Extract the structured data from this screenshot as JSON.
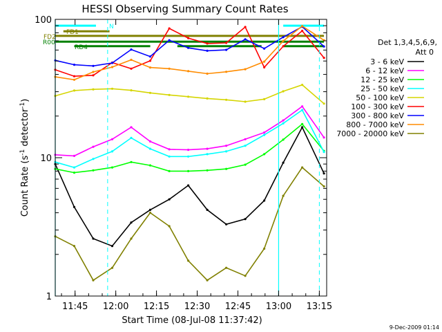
{
  "chart_data": {
    "type": "line",
    "title": "HESSI Observing Summary Count Rates",
    "xlabel": "Start Time (08-Jul-08 11:37:42)",
    "ylabel_main": "Count Rate (s",
    "ylabel_sup1": "-1",
    "ylabel_mid": " detector",
    "ylabel_sup2": "-1",
    "ylabel_end": ")",
    "yscale": "log",
    "ylim": [
      1,
      100
    ],
    "xlim_minutes": [
      0,
      100
    ],
    "x_ticks": [
      {
        "label": "11:45",
        "minute": 7.3
      },
      {
        "label": "12:00",
        "minute": 22.3
      },
      {
        "label": "12:15",
        "minute": 37.3
      },
      {
        "label": "12:30",
        "minute": 52.3
      },
      {
        "label": "12:45",
        "minute": 67.3
      },
      {
        "label": "13:00",
        "minute": 82.3
      },
      {
        "label": "13:15",
        "minute": 97.3
      }
    ],
    "y_ticks": [
      {
        "label": "1",
        "value": 1
      },
      {
        "label": "10",
        "value": 10
      },
      {
        "label": "100",
        "value": 100
      }
    ],
    "legend_title_1": "Det 1,3,4,5,6,9,",
    "legend_title_2": "Att 0",
    "legend_position": "right",
    "series": [
      {
        "name": "3 - 6 keV",
        "color": "#000000",
        "values": [
          9.0,
          4.4,
          2.6,
          2.3,
          3.4,
          4.2,
          5.0,
          6.3,
          4.2,
          3.3,
          3.6,
          4.9,
          9.2,
          16.6,
          7.7
        ]
      },
      {
        "name": "6 - 12 keV",
        "color": "#ff00ff",
        "values": [
          10.5,
          10.3,
          12.0,
          13.6,
          16.6,
          13.1,
          11.5,
          11.4,
          11.6,
          12.2,
          13.6,
          15.2,
          18.6,
          23.5,
          14.0
        ]
      },
      {
        "name": "12 - 25 keV",
        "color": "#00ff00",
        "values": [
          8.3,
          7.8,
          8.1,
          8.5,
          9.3,
          8.8,
          8.0,
          8.0,
          8.1,
          8.3,
          8.9,
          10.6,
          13.5,
          17.5,
          11.2
        ]
      },
      {
        "name": "25 - 50 keV",
        "color": "#00ffff",
        "values": [
          9.3,
          8.5,
          9.8,
          11.1,
          13.9,
          11.6,
          10.2,
          10.2,
          10.6,
          11.1,
          12.2,
          14.6,
          17.7,
          22.1,
          11.0
        ]
      },
      {
        "name": "50 - 100 keV",
        "color": "#d5d500",
        "values": [
          28.0,
          30.6,
          31.2,
          31.5,
          30.7,
          29.4,
          28.4,
          27.6,
          26.8,
          26.2,
          25.4,
          26.5,
          30.2,
          33.6,
          24.6
        ]
      },
      {
        "name": "100 - 300 keV",
        "color": "#ff0000",
        "values": [
          43.2,
          38.8,
          39.4,
          48.7,
          44.0,
          50.2,
          86.0,
          73.2,
          66.9,
          67.6,
          88.1,
          45.0,
          63.9,
          82.6,
          52.7
        ]
      },
      {
        "name": "300 - 800 keV",
        "color": "#0000ff",
        "values": [
          50.5,
          47.0,
          46.1,
          48.4,
          60.5,
          53.9,
          70.6,
          62.2,
          59.3,
          60.2,
          71.8,
          61.5,
          74.4,
          88.5,
          63.7
        ]
      },
      {
        "name": "800 - 7000 keV",
        "color": "#ff8c00",
        "values": [
          38.4,
          36.6,
          41.7,
          45.2,
          51.0,
          44.9,
          44.0,
          42.2,
          40.5,
          41.8,
          43.6,
          49.5,
          69.8,
          89.4,
          70.6
        ]
      },
      {
        "name": "7000 - 20000 keV",
        "color": "#808000",
        "values": [
          2.7,
          2.3,
          1.3,
          1.6,
          2.6,
          4.0,
          3.2,
          1.8,
          1.3,
          1.6,
          1.4,
          2.2,
          5.3,
          8.5,
          6.2
        ]
      }
    ],
    "series_x_minutes": [
      0,
      7,
      14,
      21,
      28,
      35,
      42,
      49,
      56,
      63,
      70,
      77,
      84,
      91,
      99
    ],
    "flag_bars": [
      {
        "label": "N",
        "color": "#00ffff",
        "value": 90,
        "segments": [
          [
            0,
            15
          ],
          [
            84,
            99
          ]
        ]
      },
      {
        "label": "FD1",
        "color": "#808000",
        "value": 82,
        "segments": [
          [
            3,
            20
          ]
        ]
      },
      {
        "label": "FD2",
        "color": "#808000",
        "value": 76,
        "segments": [
          [
            0,
            99
          ]
        ]
      },
      {
        "label": "R00",
        "color": "#008000",
        "value": 69,
        "segments": [
          [
            0,
            99
          ]
        ]
      },
      {
        "label": "RD4",
        "color": "#008000",
        "value": 64,
        "segments": [
          [
            7,
            35
          ],
          [
            45,
            76
          ],
          [
            84,
            99
          ]
        ]
      }
    ],
    "saa_lines_solid_minutes": [
      0,
      82.3
    ],
    "saa_lines_dashed_minutes": [
      19.3,
      97.3
    ]
  },
  "footer": {
    "timestamp": "9-Dec-2009 01:14"
  }
}
